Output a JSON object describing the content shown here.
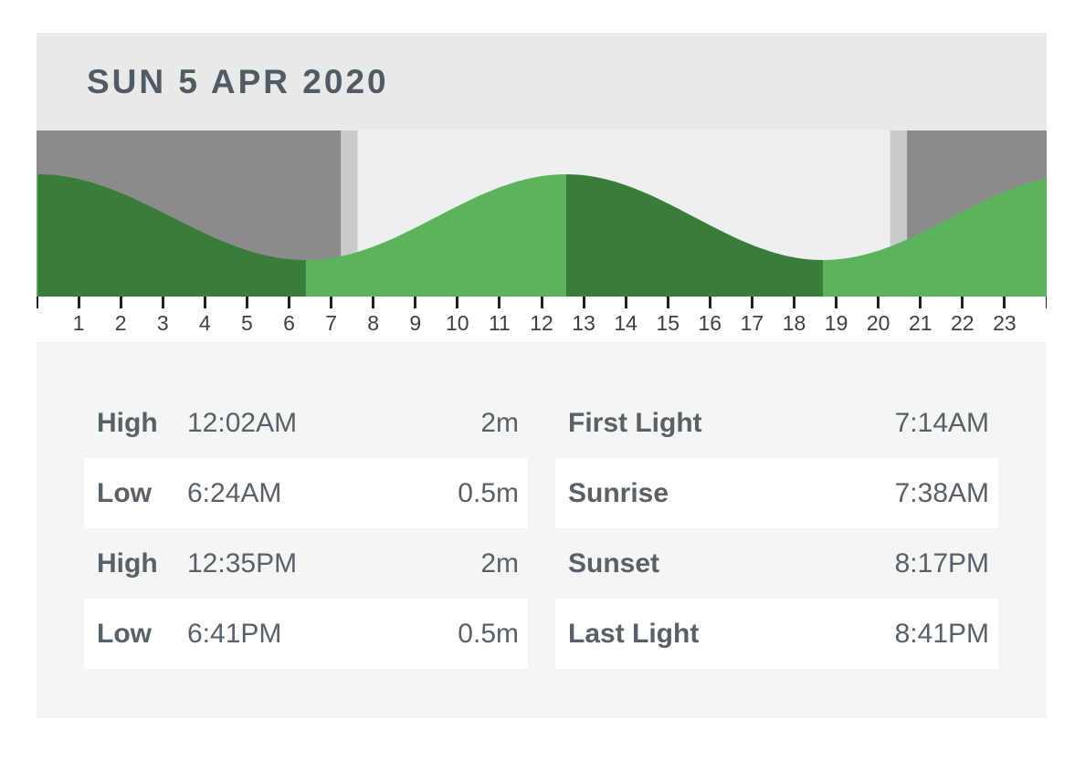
{
  "header": {
    "title": "SUN 5 APR 2020"
  },
  "chart_data": {
    "type": "area",
    "description": "24-hour tide height curve with night/twilight/day background shading",
    "x_axis": {
      "range_hours": [
        0,
        24
      ],
      "ticks": [
        1,
        2,
        3,
        4,
        5,
        6,
        7,
        8,
        9,
        10,
        11,
        12,
        13,
        14,
        15,
        16,
        17,
        18,
        19,
        20,
        21,
        22,
        23
      ]
    },
    "y_axis": {
      "unit": "m",
      "min_height_m": 0.5,
      "max_height_m": 2
    },
    "tide_extremes": [
      {
        "type": "High",
        "time": "12:02AM",
        "hour": 0.033,
        "height_m": 2
      },
      {
        "type": "Low",
        "time": "6:24AM",
        "hour": 6.4,
        "height_m": 0.5
      },
      {
        "type": "High",
        "time": "12:35PM",
        "hour": 12.583,
        "height_m": 2
      },
      {
        "type": "Low",
        "time": "6:41PM",
        "hour": 18.683,
        "height_m": 0.5
      }
    ],
    "sun_events": [
      {
        "label": "First Light",
        "time": "7:14AM",
        "hour": 7.233
      },
      {
        "label": "Sunrise",
        "time": "7:38AM",
        "hour": 7.633
      },
      {
        "label": "Sunset",
        "time": "8:17PM",
        "hour": 20.283
      },
      {
        "label": "Last Light",
        "time": "8:41PM",
        "hour": 20.683
      }
    ],
    "colors": {
      "rising_tide": "#5cb35c",
      "falling_tide": "#3a7d3b",
      "night": "#8b8b8b",
      "twilight": "#c9cbcb",
      "day": "#edeff0"
    }
  },
  "tide_table": {
    "rows": [
      {
        "label": "High",
        "time": "12:02AM",
        "height": "2m"
      },
      {
        "label": "Low",
        "time": "6:24AM",
        "height": "0.5m"
      },
      {
        "label": "High",
        "time": "12:35PM",
        "height": "2m"
      },
      {
        "label": "Low",
        "time": "6:41PM",
        "height": "0.5m"
      }
    ]
  },
  "sun_table": {
    "rows": [
      {
        "label": "First Light",
        "time": "7:14AM"
      },
      {
        "label": "Sunrise",
        "time": "7:38AM"
      },
      {
        "label": "Sunset",
        "time": "8:17PM"
      },
      {
        "label": "Last Light",
        "time": "8:41PM"
      }
    ]
  }
}
